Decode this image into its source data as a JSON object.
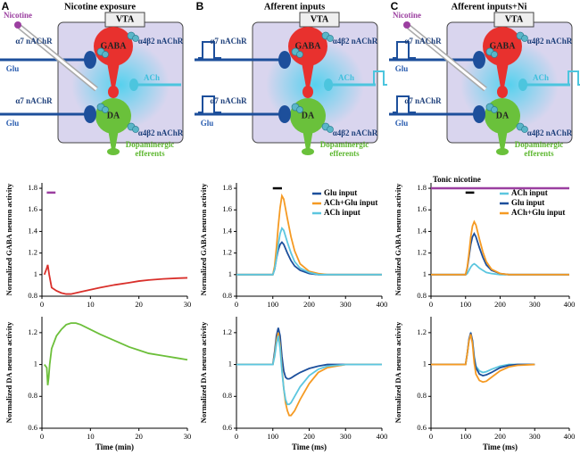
{
  "diagrams": [
    {
      "label": "A",
      "title": "Nicotine exposure",
      "nicotine": "Nicotine",
      "vta": "VTA",
      "a7_top": "α7 nAChR",
      "a4b2_top": "α4β2 nAChR",
      "gaba": "GABA",
      "glu_top": "Glu",
      "ach": "ACh",
      "a7_bottom": "α7 nAChR",
      "da": "DA",
      "glu_bottom": "Glu",
      "a4b2_bottom": "α4β2 nAChR",
      "efferents": [
        "Dopaminergic",
        "efferents"
      ]
    },
    {
      "label": "B",
      "title": "Afferent inputs",
      "vta": "VTA",
      "a7_top": "α7 nAChR",
      "a4b2_top": "α4β2 nAChR",
      "gaba": "GABA",
      "ach": "ACh",
      "a7_bottom": "α7 nAChR",
      "da": "DA",
      "glu_bottom": "Glu",
      "a4b2_bottom": "α4β2 nAChR",
      "efferents": [
        "Dopaminergic",
        "efferents"
      ]
    },
    {
      "label": "C",
      "title": "Afferent inputs+Ni",
      "nicotine": "Nicotine",
      "vta": "VTA",
      "a7_top": "α7 nAChR",
      "a4b2_top": "α4β2 nAChR",
      "gaba": "GABA",
      "glu_top": "Glu",
      "ach": "ACh",
      "a7_bottom": "α7 nAChR",
      "da": "DA",
      "glu_bottom": "Glu",
      "a4b2_bottom": "α4β2 nAChR",
      "efferents": [
        "Dopaminergic",
        "efferents"
      ]
    }
  ],
  "chart_data": [
    {
      "type": "line",
      "ylabel": "Normalized GABA neuron activity",
      "x": [
        0.5,
        1,
        1.2,
        1.5,
        2,
        3,
        4,
        5,
        6,
        8,
        10,
        12,
        15,
        18,
        20,
        22,
        25,
        28,
        30
      ],
      "series": [
        {
          "color": "#d9302b",
          "values": [
            1,
            1.06,
            1.09,
            1.0,
            0.88,
            0.85,
            0.83,
            0.82,
            0.82,
            0.84,
            0.86,
            0.88,
            0.905,
            0.925,
            0.94,
            0.95,
            0.96,
            0.967,
            0.97
          ]
        }
      ],
      "bars": [
        {
          "x": [
            1,
            2.8
          ],
          "y": 1.76,
          "color": "#9b3fa0"
        }
      ],
      "xlim": [
        0,
        30
      ],
      "xticks": [
        0,
        10,
        20,
        30
      ],
      "ylim": [
        0.8,
        1.85
      ],
      "yticks": [
        0.8,
        1,
        1.2,
        1.4,
        1.6,
        1.8
      ]
    },
    {
      "type": "line",
      "ylabel": "Normalized DA neuron activity",
      "xlabel": "Time (min)",
      "x": [
        0.5,
        1,
        1.2,
        1.4,
        1.6,
        2,
        3,
        4,
        5,
        6,
        7,
        8,
        10,
        12,
        15,
        18,
        20,
        22,
        25,
        28,
        30
      ],
      "series": [
        {
          "color": "#6cbf3a",
          "values": [
            1,
            0.98,
            0.87,
            0.92,
            1.0,
            1.1,
            1.18,
            1.22,
            1.25,
            1.26,
            1.26,
            1.25,
            1.22,
            1.19,
            1.15,
            1.11,
            1.09,
            1.07,
            1.055,
            1.04,
            1.03
          ]
        }
      ],
      "xlim": [
        0,
        30
      ],
      "xticks": [
        0,
        10,
        20,
        30
      ],
      "ylim": [
        0.6,
        1.3
      ],
      "yticks": [
        0.6,
        0.8,
        1,
        1.2
      ]
    },
    {
      "type": "line",
      "ylabel": "Normalized GABA neuron activity",
      "legend": "upper right",
      "x": [
        0,
        100,
        105,
        110,
        115,
        120,
        125,
        130,
        140,
        150,
        160,
        175,
        200,
        225,
        250,
        300,
        400
      ],
      "series": [
        {
          "name": "Glu input",
          "color": "#1c4f9c",
          "values": [
            1,
            1,
            1.05,
            1.15,
            1.23,
            1.28,
            1.3,
            1.28,
            1.2,
            1.13,
            1.08,
            1.04,
            1.01,
            1,
            1,
            1,
            1
          ]
        },
        {
          "name": "ACh+Glu input",
          "color": "#f59a23",
          "values": [
            1,
            1,
            1.08,
            1.25,
            1.45,
            1.62,
            1.73,
            1.7,
            1.52,
            1.35,
            1.22,
            1.1,
            1.03,
            1.01,
            1,
            1,
            1
          ]
        },
        {
          "name": "ACh input",
          "color": "#5cc6df",
          "values": [
            1,
            1,
            1.05,
            1.15,
            1.28,
            1.38,
            1.43,
            1.41,
            1.3,
            1.2,
            1.12,
            1.06,
            1.02,
            1,
            1,
            1,
            1
          ]
        }
      ],
      "bars": [
        {
          "x": [
            100,
            125
          ],
          "y": 1.8,
          "color": "#000000"
        }
      ],
      "xlim": [
        0,
        400
      ],
      "xticks": [
        0,
        100,
        200,
        300,
        400
      ],
      "ylim": [
        0.8,
        1.85
      ],
      "yticks": [
        0.8,
        1,
        1.2,
        1.4,
        1.6,
        1.8
      ]
    },
    {
      "type": "line",
      "ylabel": "Normalized DA neuron activity",
      "xlabel": "Time (ms)",
      "x": [
        0,
        100,
        105,
        110,
        115,
        120,
        125,
        130,
        135,
        140,
        145,
        150,
        160,
        175,
        200,
        225,
        250,
        300,
        400
      ],
      "series": [
        {
          "color": "#1c4f9c",
          "values": [
            1,
            1,
            1.08,
            1.18,
            1.23,
            1.18,
            1.05,
            0.96,
            0.92,
            0.91,
            0.91,
            0.915,
            0.93,
            0.95,
            0.975,
            0.99,
            1,
            1,
            1
          ]
        },
        {
          "color": "#f59a23",
          "values": [
            1,
            1,
            1.06,
            1.15,
            1.2,
            1.12,
            0.98,
            0.85,
            0.76,
            0.71,
            0.68,
            0.68,
            0.71,
            0.78,
            0.88,
            0.95,
            0.98,
            1,
            1
          ]
        },
        {
          "color": "#5cc6df",
          "values": [
            1,
            1,
            1.05,
            1.13,
            1.18,
            1.1,
            0.96,
            0.85,
            0.78,
            0.75,
            0.75,
            0.76,
            0.8,
            0.86,
            0.93,
            0.97,
            0.99,
            1,
            1
          ]
        }
      ],
      "xlim": [
        0,
        400
      ],
      "xticks": [
        0,
        100,
        200,
        300,
        400
      ],
      "ylim": [
        0.6,
        1.3
      ],
      "yticks": [
        0.6,
        0.8,
        1,
        1.2
      ]
    },
    {
      "type": "line",
      "ylabel": "Normalized GABA neuron activity",
      "legend": "upper right",
      "x": [
        0,
        100,
        105,
        110,
        115,
        120,
        125,
        130,
        140,
        150,
        160,
        175,
        200,
        225,
        250,
        300,
        400
      ],
      "series": [
        {
          "name": "ACh input",
          "color": "#5cc6df",
          "values": [
            1,
            1,
            1.01,
            1.04,
            1.07,
            1.09,
            1.1,
            1.09,
            1.06,
            1.04,
            1.02,
            1.01,
            1,
            1,
            1,
            1,
            1
          ]
        },
        {
          "name": "Glu input",
          "color": "#1c4f9c",
          "values": [
            1,
            1,
            1.06,
            1.17,
            1.28,
            1.35,
            1.38,
            1.35,
            1.25,
            1.16,
            1.09,
            1.04,
            1.01,
            1,
            1,
            1,
            1
          ]
        },
        {
          "name": "ACh+Glu input",
          "color": "#f59a23",
          "values": [
            1,
            1,
            1.07,
            1.2,
            1.35,
            1.45,
            1.49,
            1.46,
            1.33,
            1.21,
            1.12,
            1.05,
            1.01,
            1,
            1,
            1,
            1
          ]
        }
      ],
      "bars": [
        {
          "x": [
            0,
            400
          ],
          "y": 1.8,
          "color": "#9b3fa0",
          "label": "Tonic nicotine"
        },
        {
          "x": [
            100,
            125
          ],
          "y": 1.76,
          "color": "#000000"
        }
      ],
      "xlim": [
        0,
        400
      ],
      "xticks": [
        0,
        100,
        200,
        300,
        400
      ],
      "ylim": [
        0.8,
        1.85
      ],
      "yticks": [
        0.8,
        1,
        1.2,
        1.4,
        1.6,
        1.8
      ]
    },
    {
      "type": "line",
      "ylabel": "Normalized DA neuron activity",
      "xlabel": "Time (ms)",
      "x": [
        0,
        100,
        105,
        110,
        115,
        120,
        125,
        130,
        140,
        150,
        160,
        175,
        200,
        225,
        250,
        300
      ],
      "series": [
        {
          "color": "#5cc6df",
          "values": [
            1,
            1,
            1.07,
            1.15,
            1.19,
            1.15,
            1.05,
            0.99,
            0.96,
            0.95,
            0.955,
            0.97,
            0.99,
            1,
            1,
            1
          ]
        },
        {
          "color": "#1c4f9c",
          "values": [
            1,
            1,
            1.07,
            1.16,
            1.2,
            1.15,
            1.04,
            0.98,
            0.94,
            0.93,
            0.935,
            0.95,
            0.98,
            0.995,
            1,
            1
          ]
        },
        {
          "color": "#f59a23",
          "values": [
            1,
            1,
            1.07,
            1.15,
            1.19,
            1.13,
            1.01,
            0.94,
            0.9,
            0.89,
            0.895,
            0.92,
            0.96,
            0.985,
            0.995,
            1
          ]
        }
      ],
      "xlim": [
        0,
        400
      ],
      "xticks": [
        0,
        100,
        200,
        300,
        400
      ],
      "ylim": [
        0.6,
        1.3
      ],
      "yticks": [
        0.6,
        0.8,
        1,
        1.2
      ]
    }
  ]
}
